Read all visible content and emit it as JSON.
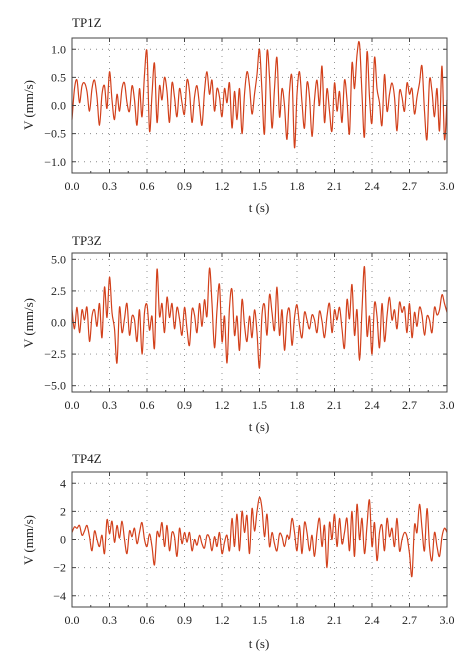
{
  "colors": {
    "trace": "#d2401b"
  },
  "chart_data": [
    {
      "type": "line",
      "title": "TP1Z",
      "xlabel": "t (s)",
      "ylabel": "V (mm/s)",
      "xlim": [
        0,
        3
      ],
      "ylim": [
        -1.2,
        1.2
      ],
      "x_ticks": [
        "0.0",
        "0.3",
        "0.6",
        "0.9",
        "1.2",
        "1.5",
        "1.8",
        "2.1",
        "2.4",
        "2.7",
        "3.0"
      ],
      "y_ticks": [
        "1.0",
        "0.5",
        "0.0",
        "−0.5",
        "−1.0"
      ],
      "grid": true,
      "series": [
        {
          "x": [
            0,
            0.02,
            0.04,
            0.06,
            0.08,
            0.1,
            0.12,
            0.14,
            0.16,
            0.18,
            0.2,
            0.22,
            0.24,
            0.26,
            0.28,
            0.3,
            0.32,
            0.34,
            0.36,
            0.38,
            0.4,
            0.42,
            0.44,
            0.46,
            0.48,
            0.5,
            0.52,
            0.54,
            0.56,
            0.58,
            0.6,
            0.62,
            0.64,
            0.66,
            0.68,
            0.7,
            0.72,
            0.74,
            0.76,
            0.78,
            0.8,
            0.82,
            0.84,
            0.86,
            0.88,
            0.9,
            0.92,
            0.94,
            0.96,
            0.98,
            1.0,
            1.02,
            1.04,
            1.06,
            1.08,
            1.1,
            1.12,
            1.14,
            1.16,
            1.18,
            1.2,
            1.22,
            1.24,
            1.26,
            1.28,
            1.3,
            1.32,
            1.34,
            1.36,
            1.38,
            1.4,
            1.42,
            1.44,
            1.46,
            1.48,
            1.5,
            1.52,
            1.54,
            1.56,
            1.58,
            1.6,
            1.62,
            1.64,
            1.66,
            1.68,
            1.7,
            1.72,
            1.74,
            1.76,
            1.78,
            1.8,
            1.82,
            1.84,
            1.86,
            1.88,
            1.9,
            1.92,
            1.94,
            1.96,
            1.98,
            2.0,
            2.02,
            2.04,
            2.06,
            2.08,
            2.1,
            2.12,
            2.14,
            2.16,
            2.18,
            2.2,
            2.22,
            2.24,
            2.26,
            2.28,
            2.3,
            2.32,
            2.34,
            2.36,
            2.38,
            2.4,
            2.42,
            2.44,
            2.46,
            2.48,
            2.5,
            2.52,
            2.54,
            2.56,
            2.58,
            2.6,
            2.62,
            2.64,
            2.66,
            2.68,
            2.7,
            2.72,
            2.74,
            2.76,
            2.78,
            2.8,
            2.82,
            2.84,
            2.86,
            2.88,
            2.9,
            2.92,
            2.94,
            2.96,
            2.98,
            3.0
          ],
          "y": [
            -0.25,
            0.3,
            0.45,
            0.05,
            0.35,
            0.4,
            0.25,
            -0.1,
            0.3,
            0.45,
            0.15,
            -0.35,
            0.2,
            0.35,
            -0.05,
            0.6,
            0.1,
            -0.25,
            0.2,
            -0.1,
            0.3,
            0.4,
            0.05,
            -0.1,
            0.35,
            0.1,
            -0.35,
            0.3,
            -0.2,
            0.55,
            0.95,
            -0.45,
            0.2,
            0.75,
            -0.3,
            0.35,
            0.1,
            0.5,
            0.25,
            -0.3,
            0.4,
            0.15,
            -0.2,
            0.3,
            0.05,
            -0.15,
            0.45,
            0.25,
            -0.3,
            0.15,
            0.35,
            0.0,
            -0.35,
            0.25,
            0.6,
            0.2,
            0.45,
            -0.1,
            0.3,
            0.15,
            -0.2,
            0.3,
            0.05,
            0.4,
            -0.4,
            0.25,
            -0.25,
            0.3,
            -0.5,
            0.2,
            0.6,
            0.35,
            -0.15,
            0.2,
            0.55,
            1.0,
            0.25,
            -0.5,
            0.95,
            0.5,
            -0.4,
            0.3,
            0.85,
            -0.2,
            0.3,
            0.0,
            -0.6,
            0.25,
            0.5,
            -0.75,
            0.2,
            0.6,
            0.05,
            -0.4,
            0.4,
            0.15,
            -0.55,
            0.1,
            0.45,
            0.0,
            0.7,
            -0.3,
            0.3,
            -0.1,
            -0.45,
            0.4,
            -0.1,
            0.25,
            -0.3,
            0.45,
            0.1,
            -0.5,
            0.75,
            0.3,
            0.9,
            1.1,
            0.2,
            -0.55,
            0.95,
            0.15,
            -0.3,
            0.85,
            0.3,
            0.05,
            -0.35,
            0.55,
            -0.1,
            0.2,
            0.4,
            0.15,
            -0.45,
            0.25,
            0.15,
            -0.1,
            0.4,
            0.2,
            0.3,
            -0.15,
            0.15,
            0.4,
            0.7,
            -0.1,
            -0.6,
            0.45,
            0.25,
            -0.2,
            0.3,
            -0.45,
            0.7,
            -0.6,
            0.1
          ]
        }
      ]
    },
    {
      "type": "line",
      "title": "TP3Z",
      "xlabel": "t (s)",
      "ylabel": "V (mm/s)",
      "xlim": [
        0,
        3
      ],
      "ylim": [
        -5.5,
        5.5
      ],
      "x_ticks": [
        "0.0",
        "0.3",
        "0.6",
        "0.9",
        "1.2",
        "1.5",
        "1.8",
        "2.1",
        "2.4",
        "2.7",
        "3.0"
      ],
      "y_ticks": [
        "5.0",
        "2.5",
        "0.0",
        "−2.5",
        "−5.0"
      ],
      "grid": true,
      "series": [
        {
          "x": [
            0,
            0.02,
            0.04,
            0.06,
            0.08,
            0.1,
            0.12,
            0.14,
            0.16,
            0.18,
            0.2,
            0.22,
            0.24,
            0.26,
            0.28,
            0.3,
            0.32,
            0.34,
            0.36,
            0.38,
            0.4,
            0.42,
            0.44,
            0.46,
            0.48,
            0.5,
            0.52,
            0.54,
            0.56,
            0.58,
            0.6,
            0.62,
            0.64,
            0.66,
            0.68,
            0.7,
            0.72,
            0.74,
            0.76,
            0.78,
            0.8,
            0.82,
            0.84,
            0.86,
            0.88,
            0.9,
            0.92,
            0.94,
            0.96,
            0.98,
            1.0,
            1.02,
            1.04,
            1.06,
            1.08,
            1.1,
            1.12,
            1.14,
            1.16,
            1.18,
            1.2,
            1.22,
            1.24,
            1.26,
            1.28,
            1.3,
            1.32,
            1.34,
            1.36,
            1.38,
            1.4,
            1.42,
            1.44,
            1.46,
            1.48,
            1.5,
            1.52,
            1.54,
            1.56,
            1.58,
            1.6,
            1.62,
            1.64,
            1.66,
            1.68,
            1.7,
            1.72,
            1.74,
            1.76,
            1.78,
            1.8,
            1.82,
            1.84,
            1.86,
            1.88,
            1.9,
            1.92,
            1.94,
            1.96,
            1.98,
            2.0,
            2.02,
            2.04,
            2.06,
            2.08,
            2.1,
            2.12,
            2.14,
            2.16,
            2.18,
            2.2,
            2.22,
            2.24,
            2.26,
            2.28,
            2.3,
            2.32,
            2.34,
            2.36,
            2.38,
            2.4,
            2.42,
            2.44,
            2.46,
            2.48,
            2.5,
            2.52,
            2.54,
            2.56,
            2.58,
            2.6,
            2.62,
            2.64,
            2.66,
            2.68,
            2.7,
            2.72,
            2.74,
            2.76,
            2.78,
            2.8,
            2.82,
            2.84,
            2.86,
            2.88,
            2.9,
            2.92,
            2.94,
            2.96,
            2.98,
            3.0
          ],
          "y": [
            1.0,
            -0.5,
            1.2,
            -0.8,
            1.0,
            0.2,
            1.2,
            -1.5,
            0.5,
            1.0,
            -0.3,
            1.5,
            -1.2,
            2.8,
            0.4,
            3.6,
            0.8,
            -0.5,
            -3.2,
            1.2,
            -0.8,
            0.3,
            1.5,
            -1.0,
            0.5,
            0.2,
            -1.5,
            1.0,
            -2.5,
            0.8,
            1.4,
            -0.6,
            0.5,
            -2.0,
            4.2,
            0.5,
            1.5,
            -0.8,
            2.0,
            0.4,
            1.5,
            -0.5,
            1.2,
            0.3,
            -1.0,
            1.2,
            -0.5,
            -1.8,
            1.0,
            0.6,
            -0.8,
            1.5,
            -0.3,
            1.8,
            0.5,
            4.3,
            1.5,
            -2.0,
            1.0,
            3.0,
            -1.5,
            0.5,
            -3.2,
            1.2,
            2.6,
            -1.0,
            0.5,
            -2.2,
            1.8,
            -0.2,
            -1.5,
            0.5,
            -1.2,
            1.0,
            -0.8,
            -3.6,
            0.6,
            1.4,
            -1.0,
            2.2,
            0.8,
            -0.6,
            2.8,
            -1.0,
            1.0,
            -2.2,
            0.5,
            1.0,
            -1.8,
            0.4,
            1.4,
            -0.2,
            -1.2,
            0.8,
            0.2,
            -0.5,
            0.6,
            0.2,
            -0.8,
            0.9,
            0.1,
            -1.2,
            0.5,
            1.5,
            -0.8,
            1.0,
            0.2,
            1.2,
            -0.5,
            -2.0,
            1.8,
            0.3,
            3.0,
            -1.0,
            1.0,
            -3.0,
            1.0,
            4.4,
            -1.0,
            0.5,
            -2.5,
            1.5,
            0.5,
            -2.0,
            1.5,
            -1.5,
            0.5,
            2.0,
            0.2,
            1.0,
            -0.5,
            1.6,
            0.8,
            1.2,
            -0.8,
            1.5,
            -1.2,
            0.8,
            -0.3,
            1.2,
            0.6,
            -1.0,
            0.5,
            0.2,
            -0.8,
            1.2,
            0.6,
            1.0,
            2.2,
            1.5,
            0.8
          ]
        }
      ]
    },
    {
      "type": "line",
      "title": "TP4Z",
      "xlabel": "t (s)",
      "ylabel": "V (mm/s)",
      "xlim": [
        0,
        3
      ],
      "ylim": [
        -4.8,
        4.8
      ],
      "x_ticks": [
        "0.0",
        "0.3",
        "0.6",
        "0.9",
        "1.2",
        "1.5",
        "1.8",
        "2.1",
        "2.4",
        "2.7",
        "3.0"
      ],
      "y_ticks": [
        "4",
        "2",
        "0",
        "−2",
        "−4"
      ],
      "grid": true,
      "series": [
        {
          "x": [
            0,
            0.02,
            0.04,
            0.06,
            0.08,
            0.1,
            0.12,
            0.14,
            0.16,
            0.18,
            0.2,
            0.22,
            0.24,
            0.26,
            0.28,
            0.3,
            0.32,
            0.34,
            0.36,
            0.38,
            0.4,
            0.42,
            0.44,
            0.46,
            0.48,
            0.5,
            0.52,
            0.54,
            0.56,
            0.58,
            0.6,
            0.62,
            0.64,
            0.66,
            0.68,
            0.7,
            0.72,
            0.74,
            0.76,
            0.78,
            0.8,
            0.82,
            0.84,
            0.86,
            0.88,
            0.9,
            0.92,
            0.94,
            0.96,
            0.98,
            1.0,
            1.02,
            1.04,
            1.06,
            1.08,
            1.1,
            1.12,
            1.14,
            1.16,
            1.18,
            1.2,
            1.22,
            1.24,
            1.26,
            1.28,
            1.3,
            1.32,
            1.34,
            1.36,
            1.38,
            1.4,
            1.42,
            1.44,
            1.46,
            1.48,
            1.5,
            1.52,
            1.54,
            1.56,
            1.58,
            1.6,
            1.62,
            1.64,
            1.66,
            1.68,
            1.7,
            1.72,
            1.74,
            1.76,
            1.78,
            1.8,
            1.82,
            1.84,
            1.86,
            1.88,
            1.9,
            1.92,
            1.94,
            1.96,
            1.98,
            2.0,
            2.02,
            2.04,
            2.06,
            2.08,
            2.1,
            2.12,
            2.14,
            2.16,
            2.18,
            2.2,
            2.22,
            2.24,
            2.26,
            2.28,
            2.3,
            2.32,
            2.34,
            2.36,
            2.38,
            2.4,
            2.42,
            2.44,
            2.46,
            2.48,
            2.5,
            2.52,
            2.54,
            2.56,
            2.58,
            2.6,
            2.62,
            2.64,
            2.66,
            2.68,
            2.7,
            2.72,
            2.74,
            2.76,
            2.78,
            2.8,
            2.82,
            2.84,
            2.86,
            2.88,
            2.9,
            2.92,
            2.94,
            2.96,
            2.98,
            3.0
          ],
          "y": [
            0.5,
            0.9,
            0.8,
            1.0,
            0.3,
            0.6,
            1.0,
            0.2,
            -0.8,
            0.6,
            0.0,
            -0.5,
            0.3,
            -1.0,
            1.4,
            0.4,
            1.3,
            -0.2,
            1.0,
            0.1,
            1.3,
            0.0,
            -1.0,
            0.6,
            0.2,
            0.8,
            -0.3,
            0.5,
            1.2,
            0.0,
            -0.5,
            0.4,
            -0.5,
            -1.8,
            0.5,
            0.2,
            1.2,
            -0.5,
            1.0,
            -0.8,
            0.5,
            0.2,
            -1.2,
            0.8,
            -0.3,
            0.5,
            -0.2,
            0.5,
            -0.8,
            0.0,
            -0.4,
            0.3,
            -0.3,
            -0.6,
            0.3,
            0.1,
            -0.8,
            0.2,
            -0.5,
            0.5,
            -1.0,
            -0.2,
            0.3,
            -0.8,
            1.5,
            -0.5,
            1.8,
            -0.8,
            2.0,
            0.5,
            1.7,
            -1.0,
            2.2,
            0.6,
            2.0,
            3.0,
            2.2,
            0.2,
            1.8,
            -0.5,
            0.5,
            -0.3,
            -0.8,
            0.4,
            0.2,
            -0.5,
            0.3,
            0.1,
            1.5,
            0.5,
            -0.8,
            1.0,
            -1.0,
            1.2,
            0.5,
            -0.8,
            0.3,
            -1.2,
            0.5,
            1.5,
            -0.5,
            1.0,
            -2.0,
            1.2,
            0.0,
            1.8,
            -0.5,
            1.5,
            -0.3,
            0.5,
            1.5,
            -0.8,
            2.0,
            -1.2,
            2.5,
            0.0,
            1.5,
            -1.0,
            1.0,
            2.8,
            -0.5,
            1.2,
            -1.5,
            0.5,
            1.0,
            -0.8,
            1.5,
            0.2,
            0.8,
            -0.5,
            1.5,
            -0.8,
            0.0,
            0.5,
            0.2,
            -1.0,
            -2.6,
            1.0,
            0.5,
            2.5,
            0.8,
            -0.8,
            2.2,
            -0.5,
            -1.5,
            0.5,
            -0.5,
            -1.2,
            0.2,
            0.8,
            0.5
          ]
        }
      ]
    }
  ]
}
